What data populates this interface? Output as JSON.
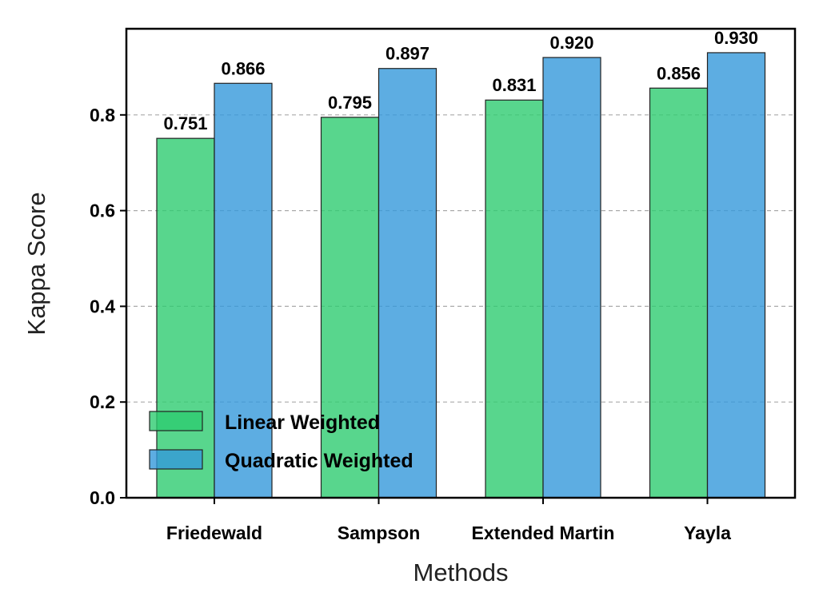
{
  "chart_data": {
    "type": "bar",
    "categories": [
      "Friedewald",
      "Sampson",
      "Extended Martin",
      "Yayla"
    ],
    "series": [
      {
        "name": "Linear Weighted",
        "values": [
          0.751,
          0.795,
          0.831,
          0.856
        ],
        "color": "#2ecc71"
      },
      {
        "name": "Quadratic Weighted",
        "values": [
          0.866,
          0.897,
          0.92,
          0.93
        ],
        "color": "#3498db"
      }
    ],
    "value_labels": [
      [
        "0.751",
        "0.795",
        "0.831",
        "0.856"
      ],
      [
        "0.866",
        "0.897",
        "0.920",
        "0.930"
      ]
    ],
    "xlabel": "Methods",
    "ylabel": "Kappa Score",
    "ylim": [
      0,
      0.98
    ],
    "yticks": [
      "0.0",
      "0.2",
      "0.4",
      "0.6",
      "0.8"
    ],
    "ytick_values": [
      0,
      0.2,
      0.4,
      0.6,
      0.8
    ],
    "grid": "y-dashed",
    "legend_position": "lower-left"
  }
}
